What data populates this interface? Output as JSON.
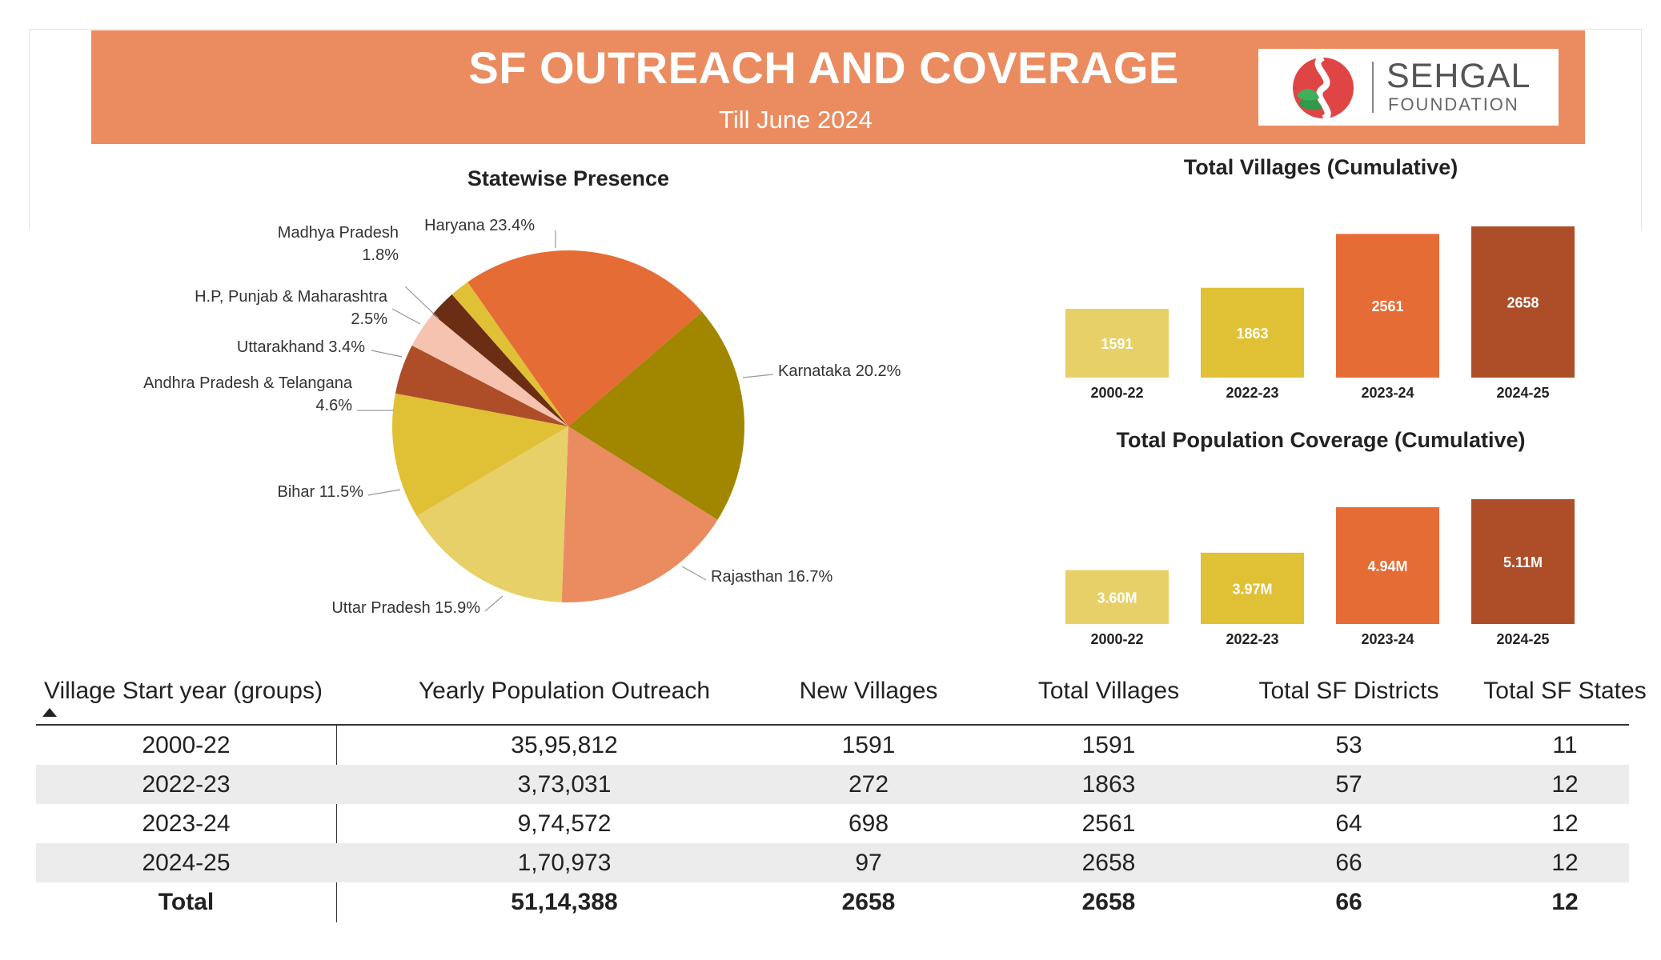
{
  "header": {
    "title": "SF OUTREACH AND COVERAGE",
    "subtitle": "Till June 2024",
    "logo_name": "SEHGAL",
    "logo_sub": "FOUNDATION"
  },
  "colors": {
    "header_bg": "#ea8c60",
    "bar_2000_22": "#e8d068",
    "bar_2022_23": "#e0c035",
    "bar_2023_24": "#e66c35",
    "bar_2024_25": "#ad4e29"
  },
  "chart_data": [
    {
      "type": "pie",
      "title": "Statewise Presence",
      "slices": [
        {
          "label": "Haryana",
          "value": 23.4,
          "text": "Haryana 23.4%",
          "color": "#e66c35"
        },
        {
          "label": "Karnataka",
          "value": 20.2,
          "text": "Karnataka 20.2%",
          "color": "#a18700"
        },
        {
          "label": "Rajasthan",
          "value": 16.7,
          "text": "Rajasthan 16.7%",
          "color": "#ea8c60"
        },
        {
          "label": "Uttar Pradesh",
          "value": 15.9,
          "text": "Uttar Pradesh 15.9%",
          "color": "#e8d068"
        },
        {
          "label": "Bihar",
          "value": 11.5,
          "text": "Bihar 11.5%",
          "color": "#e0c035"
        },
        {
          "label": "Andhra Pradesh & Telangana",
          "value": 4.6,
          "text": "Andhra Pradesh & Telangana",
          "text2": "4.6%",
          "color": "#ad4e29"
        },
        {
          "label": "Uttarakhand",
          "value": 3.4,
          "text": "Uttarakhand 3.4%",
          "color": "#f6c3b0"
        },
        {
          "label": "H.P, Punjab & Maharashtra",
          "value": 2.5,
          "text": "H.P, Punjab & Maharashtra",
          "text2": "2.5%",
          "color": "#6b2e14"
        },
        {
          "label": "Madhya Pradesh",
          "value": 1.8,
          "text": "Madhya Pradesh",
          "text2": "1.8%",
          "color": "#e0c035"
        }
      ]
    },
    {
      "type": "bar",
      "title": "Total Villages (Cumulative)",
      "categories": [
        "2000-22",
        "2022-23",
        "2023-24",
        "2024-25"
      ],
      "values": [
        1591,
        1863,
        2561,
        2658
      ],
      "labels": [
        "1591",
        "1863",
        "2561",
        "2658"
      ]
    },
    {
      "type": "bar",
      "title": "Total Population Coverage (Cumulative)",
      "categories": [
        "2000-22",
        "2022-23",
        "2023-24",
        "2024-25"
      ],
      "values": [
        3.6,
        3.97,
        4.94,
        5.11
      ],
      "labels": [
        "3.60M",
        "3.97M",
        "4.94M",
        "5.11M"
      ]
    }
  ],
  "table": {
    "columns": [
      "Village Start year (groups)",
      "Yearly Population Outreach",
      "New Villages",
      "Total Villages",
      "Total SF Districts",
      "Total SF States"
    ],
    "rows": [
      [
        "2000-22",
        "35,95,812",
        "1591",
        "1591",
        "53",
        "11"
      ],
      [
        "2022-23",
        "3,73,031",
        "272",
        "1863",
        "57",
        "12"
      ],
      [
        "2023-24",
        "9,74,572",
        "698",
        "2561",
        "64",
        "12"
      ],
      [
        "2024-25",
        "1,70,973",
        "97",
        "2658",
        "66",
        "12"
      ]
    ],
    "total": [
      "Total",
      "51,14,388",
      "2658",
      "2658",
      "66",
      "12"
    ]
  }
}
